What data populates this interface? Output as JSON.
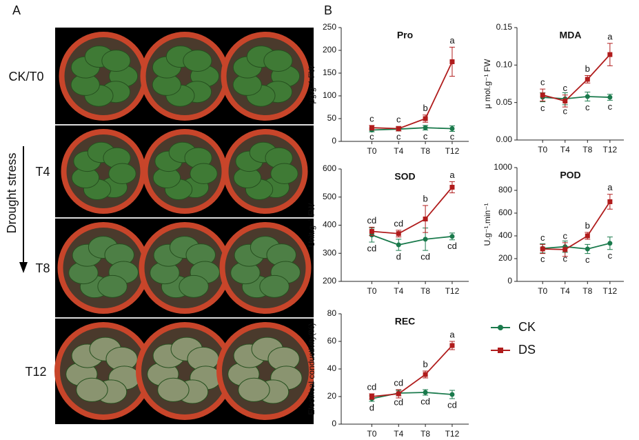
{
  "panel_a": {
    "label": "A",
    "rows": [
      "CK/T0",
      "T4",
      "T8",
      "T12"
    ],
    "arrow_label": "Drought stress"
  },
  "panel_b": {
    "label": "B"
  },
  "chart_data": [
    {
      "type": "line",
      "title": "Pro",
      "ylabel": "μg.g⁻¹ FW",
      "categories": [
        "T0",
        "T4",
        "T8",
        "T12"
      ],
      "ylim": [
        0,
        250
      ],
      "yticks": [
        0,
        50,
        100,
        150,
        200,
        250
      ],
      "series": [
        {
          "name": "CK",
          "color": "#1a7a4c",
          "values": [
            25,
            27,
            30,
            28
          ],
          "errors": [
            4,
            4,
            5,
            6
          ],
          "letters": [
            "c",
            "c",
            "c",
            "c"
          ]
        },
        {
          "name": "DS",
          "color": "#b01c1c",
          "values": [
            30,
            28,
            50,
            175
          ],
          "errors": [
            5,
            5,
            8,
            32
          ],
          "letters": [
            "c",
            "c",
            "b",
            "a"
          ]
        }
      ]
    },
    {
      "type": "line",
      "title": "MDA",
      "ylabel": "μ mol.g⁻¹ FW",
      "categories": [
        "T0",
        "T4",
        "T8",
        "T12"
      ],
      "ylim": [
        0,
        0.15
      ],
      "yticks": [
        {
          "value": 0,
          "label": "0.00"
        },
        0.05,
        {
          "value": 0.1,
          "label": "0.10"
        },
        0.15
      ],
      "series": [
        {
          "name": "CK",
          "color": "#1a7a4c",
          "values": [
            0.057,
            0.055,
            0.058,
            0.057
          ],
          "errors": [
            0.006,
            0.008,
            0.006,
            0.004
          ],
          "letters": [
            "c",
            "c",
            "c",
            "c"
          ]
        },
        {
          "name": "DS",
          "color": "#b01c1c",
          "values": [
            0.06,
            0.052,
            0.081,
            0.114
          ],
          "errors": [
            0.008,
            0.008,
            0.005,
            0.015
          ],
          "letters": [
            "c",
            "c",
            "b",
            "a"
          ]
        }
      ]
    },
    {
      "type": "line",
      "title": "SOD",
      "ylabel": "Unit.g⁻¹ FW",
      "categories": [
        "T0",
        "T4",
        "T8",
        "T12"
      ],
      "ylim": [
        200,
        600
      ],
      "yticks": [
        200,
        300,
        400,
        500,
        600
      ],
      "series": [
        {
          "name": "CK",
          "color": "#1a7a4c",
          "values": [
            365,
            330,
            350,
            360
          ],
          "errors": [
            25,
            20,
            40,
            12
          ],
          "letters": [
            "cd",
            "d",
            "cd",
            "cd"
          ]
        },
        {
          "name": "DS",
          "color": "#b01c1c",
          "values": [
            378,
            370,
            422,
            535
          ],
          "errors": [
            15,
            12,
            48,
            20
          ],
          "letters": [
            "cd",
            "cd",
            "b",
            "a"
          ]
        }
      ]
    },
    {
      "type": "line",
      "title": "POD",
      "ylabel": "U.g⁻¹.min⁻¹",
      "categories": [
        "T0",
        "T4",
        "T8",
        "T12"
      ],
      "ylim": [
        0,
        1000
      ],
      "yticks": [
        0,
        200,
        400,
        600,
        800,
        1000
      ],
      "series": [
        {
          "name": "CK",
          "color": "#1a7a4c",
          "values": [
            290,
            305,
            285,
            335
          ],
          "errors": [
            40,
            50,
            40,
            55
          ],
          "letters": [
            "c",
            "c",
            "c",
            "c"
          ]
        },
        {
          "name": "DS",
          "color": "#b01c1c",
          "values": [
            285,
            280,
            400,
            700
          ],
          "errors": [
            40,
            60,
            30,
            65
          ],
          "letters": [
            "c",
            "c",
            "b",
            "a"
          ]
        }
      ]
    },
    {
      "type": "line",
      "title": "REC",
      "ylabel": "Electrical conductivity(%)",
      "categories": [
        "T0",
        "T4",
        "T8",
        "T12"
      ],
      "ylim": [
        0,
        80
      ],
      "yticks": [
        0,
        20,
        40,
        60,
        80
      ],
      "series": [
        {
          "name": "CK",
          "color": "#1a7a4c",
          "values": [
            18.5,
            22.5,
            23,
            21.5
          ],
          "errors": [
            2,
            2,
            2,
            3
          ],
          "letters": [
            "d",
            "cd",
            "cd",
            "cd"
          ]
        },
        {
          "name": "DS",
          "color": "#b01c1c",
          "values": [
            20,
            22,
            36,
            57
          ],
          "errors": [
            2,
            3,
            2.5,
            3
          ],
          "letters": [
            "cd",
            "cd",
            "b",
            "a"
          ]
        }
      ]
    }
  ]
}
